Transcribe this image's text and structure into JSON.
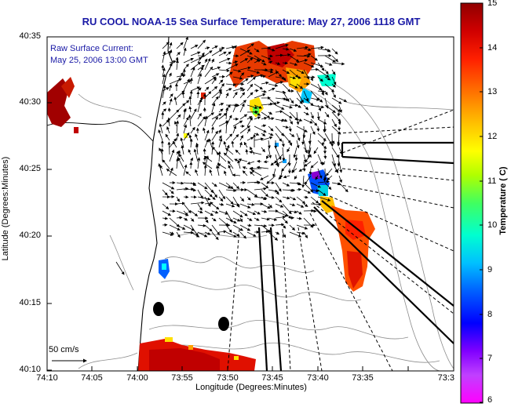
{
  "title": "RU COOL  NOAA-15  Sea Surface Temperature:  May 27, 2006 1118 GMT",
  "annotation": {
    "line1": "Raw Surface Current:",
    "line2": "May 25, 2006 13:00 GMT"
  },
  "scale_label": "50 cm/s",
  "axes": {
    "xlabel": "Longitude (Degrees:Minutes)",
    "ylabel": "Latitude (Degrees:Minutes)",
    "xticks": [
      "74:10",
      "74:05",
      "74:00",
      "73:55",
      "73:50",
      "73:45",
      "73:40",
      "73:35",
      "73:3"
    ],
    "yticks": [
      "40:35",
      "40:30",
      "40:25",
      "40:20",
      "40:15",
      "40:10"
    ]
  },
  "colorbar": {
    "title": "Temperature ( C)",
    "ticks": [
      "15",
      "14",
      "13",
      "12",
      "11",
      "10",
      "9",
      "8",
      "7",
      "6"
    ],
    "min": 6,
    "max": 15,
    "colors": [
      "#ff00ff",
      "#8000ff",
      "#0000ff",
      "#0080ff",
      "#00ffff",
      "#40ff80",
      "#c0ff00",
      "#ffff00",
      "#ffa000",
      "#ff4000",
      "#c00000",
      "#800000"
    ]
  },
  "map": {
    "features": [
      "sst-patches",
      "surface-current-vectors",
      "coastline",
      "bathymetry-contours",
      "transect-lines"
    ]
  }
}
